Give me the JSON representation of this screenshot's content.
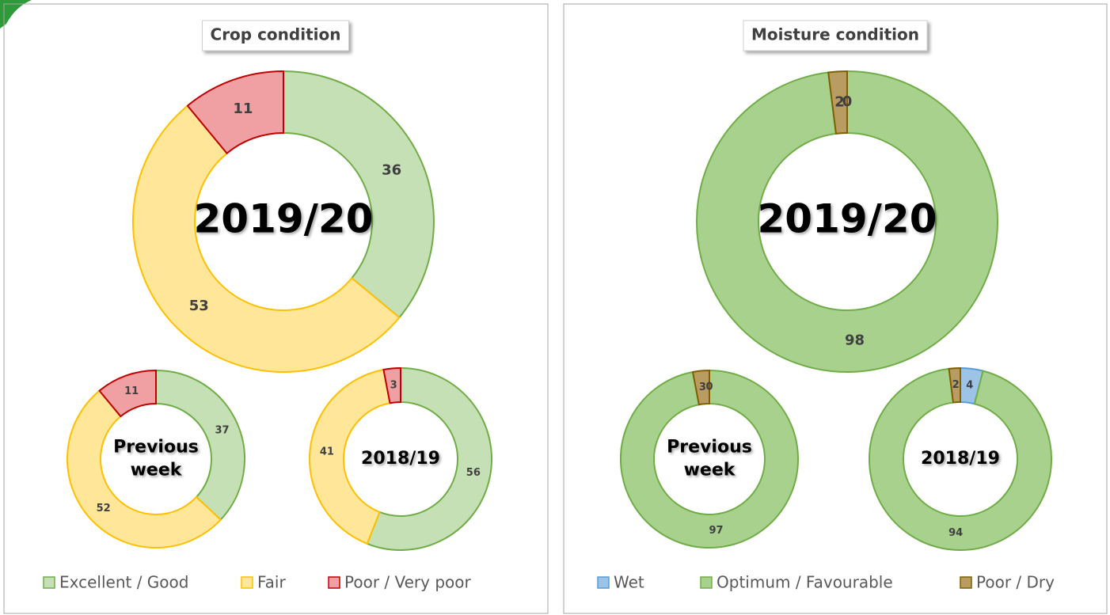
{
  "chart_data": [
    {
      "type": "donut",
      "title": "Crop condition",
      "categories": [
        "Excellent / Good",
        "Fair",
        "Poor / Very poor"
      ],
      "colors": [
        "#c5e0b4",
        "#ffe699",
        "#f0a0a3"
      ],
      "edge_colors": [
        "#70ad47",
        "#ffc000",
        "#c00000"
      ],
      "series": [
        {
          "name": "2019/20",
          "values": [
            36,
            53,
            11
          ]
        },
        {
          "name": "Previous week",
          "values": [
            37,
            52,
            11
          ]
        },
        {
          "name": "2018/19",
          "values": [
            56,
            41,
            3
          ]
        }
      ]
    },
    {
      "type": "donut",
      "title": "Moisture condition",
      "categories": [
        "Wet",
        "Optimum / Favourable",
        "Poor / Dry"
      ],
      "colors": [
        "#9dc3e6",
        "#a9d18e",
        "#b99c62"
      ],
      "edge_colors": [
        "#5b9bd5",
        "#70ad47",
        "#7f6000"
      ],
      "series": [
        {
          "name": "2019/20",
          "values": [
            0,
            98,
            2
          ]
        },
        {
          "name": "Previous week",
          "values": [
            0,
            97,
            3
          ]
        },
        {
          "name": "2018/19",
          "values": [
            4,
            94,
            2
          ]
        }
      ]
    }
  ]
}
